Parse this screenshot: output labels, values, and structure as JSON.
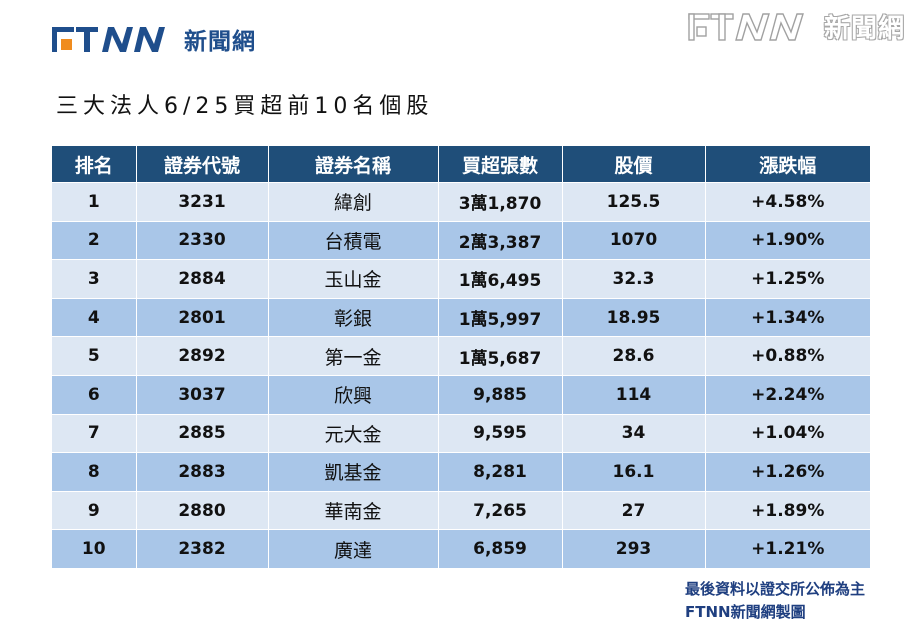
{
  "logo": {
    "text": "新聞網",
    "brand_color": "#1f4e8c",
    "accent_color": "#f08c1e"
  },
  "watermark": {
    "text": "新聞網"
  },
  "title": "三大法人6/25買超前10名個股",
  "table": {
    "headers": [
      "排名",
      "證券代號",
      "證券名稱",
      "買超張數",
      "股價",
      "漲跌幅"
    ],
    "rows": [
      [
        "1",
        "3231",
        "緯創",
        "3萬1,870",
        "125.5",
        "+4.58%"
      ],
      [
        "2",
        "2330",
        "台積電",
        "2萬3,387",
        "1070",
        "+1.90%"
      ],
      [
        "3",
        "2884",
        "玉山金",
        "1萬6,495",
        "32.3",
        "+1.25%"
      ],
      [
        "4",
        "2801",
        "彰銀",
        "1萬5,997",
        "18.95",
        "+1.34%"
      ],
      [
        "5",
        "2892",
        "第一金",
        "1萬5,687",
        "28.6",
        "+0.88%"
      ],
      [
        "6",
        "3037",
        "欣興",
        "9,885",
        "114",
        "+2.24%"
      ],
      [
        "7",
        "2885",
        "元大金",
        "9,595",
        "34",
        "+1.04%"
      ],
      [
        "8",
        "2883",
        "凱基金",
        "8,281",
        "16.1",
        "+1.26%"
      ],
      [
        "9",
        "2880",
        "華南金",
        "7,265",
        "27",
        "+1.89%"
      ],
      [
        "10",
        "2382",
        "廣達",
        "6,859",
        "293",
        "+1.21%"
      ]
    ],
    "header_color": "#1f4e79",
    "row_colors": [
      "#dde7f3",
      "#a9c6e8"
    ]
  },
  "footer": {
    "line1": "最後資料以證交所公佈為主",
    "line2": "FTNN新聞網製圖"
  }
}
